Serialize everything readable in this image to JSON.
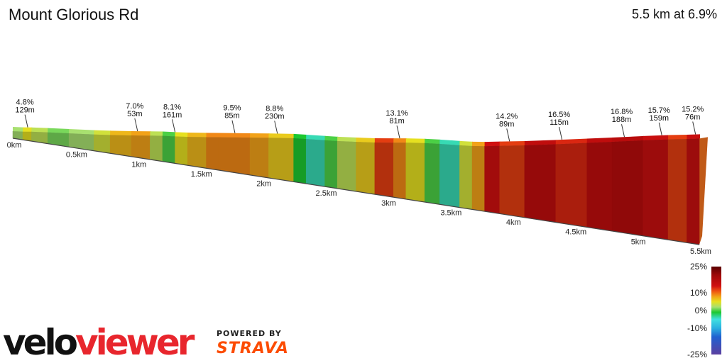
{
  "header": {
    "title": "Mount Glorious Rd",
    "summary": "5.5 km at 6.9%"
  },
  "branding": {
    "logo_text": "veloviewer",
    "powered_by": "POWERED BY",
    "strava": "STRAVA",
    "logo_color": "#e8262d",
    "strava_color": "#fc4c02"
  },
  "chart_data": {
    "type": "area",
    "title": "",
    "xlabel": "",
    "ylabel": "",
    "x_unit": "km",
    "xlim": [
      0,
      5.5
    ],
    "distance_ticks": [
      "0km",
      "0.5km",
      "1km",
      "1.5km",
      "2km",
      "2.5km",
      "3km",
      "3.5km",
      "4km",
      "4.5km",
      "5km",
      "5.5km"
    ],
    "profile": [
      {
        "d": 0.0,
        "e": 0.0,
        "g": -6
      },
      {
        "d": 0.08,
        "e": 2,
        "g": 2
      },
      {
        "d": 0.15,
        "e": 7,
        "g": 5
      },
      {
        "d": 0.28,
        "e": 11,
        "g": 3
      },
      {
        "d": 0.45,
        "e": 14,
        "g": 1
      },
      {
        "d": 0.65,
        "e": 17,
        "g": 2
      },
      {
        "d": 0.78,
        "e": 22,
        "g": 4
      },
      {
        "d": 0.95,
        "e": 32,
        "g": 7
      },
      {
        "d": 1.1,
        "e": 44,
        "g": 8
      },
      {
        "d": 1.2,
        "e": 50,
        "g": 3
      },
      {
        "d": 1.3,
        "e": 52,
        "g": 0
      },
      {
        "d": 1.4,
        "e": 55,
        "g": 5
      },
      {
        "d": 1.55,
        "e": 65,
        "g": 7
      },
      {
        "d": 1.65,
        "e": 73,
        "g": 9
      },
      {
        "d": 1.9,
        "e": 92,
        "g": 9
      },
      {
        "d": 2.05,
        "e": 103,
        "g": 8
      },
      {
        "d": 2.25,
        "e": 116,
        "g": 6
      },
      {
        "d": 2.35,
        "e": 114,
        "g": -1
      },
      {
        "d": 2.5,
        "e": 112,
        "g": -4
      },
      {
        "d": 2.6,
        "e": 111,
        "g": 0
      },
      {
        "d": 2.75,
        "e": 114,
        "g": 3
      },
      {
        "d": 2.9,
        "e": 119,
        "g": 6
      },
      {
        "d": 3.05,
        "e": 132,
        "g": 12
      },
      {
        "d": 3.15,
        "e": 141,
        "g": 9
      },
      {
        "d": 3.3,
        "e": 149,
        "g": 5
      },
      {
        "d": 3.42,
        "e": 150,
        "g": 0
      },
      {
        "d": 3.58,
        "e": 146,
        "g": -4
      },
      {
        "d": 3.68,
        "e": 146,
        "g": 4
      },
      {
        "d": 3.78,
        "e": 153,
        "g": 8
      },
      {
        "d": 3.9,
        "e": 168,
        "g": 14
      },
      {
        "d": 4.1,
        "e": 192,
        "g": 12
      },
      {
        "d": 4.35,
        "e": 230,
        "g": 16
      },
      {
        "d": 4.6,
        "e": 270,
        "g": 13
      },
      {
        "d": 4.8,
        "e": 302,
        "g": 16
      },
      {
        "d": 5.05,
        "e": 344,
        "g": 17
      },
      {
        "d": 5.25,
        "e": 375,
        "g": 15
      },
      {
        "d": 5.4,
        "e": 394,
        "g": 12
      },
      {
        "d": 5.5,
        "e": 409,
        "g": 15
      }
    ],
    "annotations": [
      {
        "d": 0.12,
        "grade": "4.8%",
        "length": "129m"
      },
      {
        "d": 1.0,
        "grade": "7.0%",
        "length": "53m"
      },
      {
        "d": 1.3,
        "grade": "8.1%",
        "length": "161m"
      },
      {
        "d": 1.78,
        "grade": "9.5%",
        "length": "85m"
      },
      {
        "d": 2.12,
        "grade": "8.8%",
        "length": "230m"
      },
      {
        "d": 3.1,
        "grade": "13.1%",
        "length": "81m"
      },
      {
        "d": 3.98,
        "grade": "14.2%",
        "length": "89m"
      },
      {
        "d": 4.4,
        "grade": "16.5%",
        "length": "115m"
      },
      {
        "d": 4.9,
        "grade": "16.8%",
        "length": "188m"
      },
      {
        "d": 5.2,
        "grade": "15.7%",
        "length": "159m"
      },
      {
        "d": 5.47,
        "grade": "15.2%",
        "length": "76m"
      }
    ],
    "legend": {
      "placement": "bottom-right",
      "labels": [
        "25%",
        "10%",
        "0%",
        "-10%",
        "-25%"
      ],
      "values": [
        25,
        10,
        0,
        -10,
        -25
      ]
    },
    "grade_colors": [
      {
        "v": -25,
        "c": "#5b3fa0"
      },
      {
        "v": -15,
        "c": "#2060d0"
      },
      {
        "v": -10,
        "c": "#2ab0e0"
      },
      {
        "v": -5,
        "c": "#40e0e0"
      },
      {
        "v": -1,
        "c": "#1cc830"
      },
      {
        "v": 2,
        "c": "#a8e070"
      },
      {
        "v": 5,
        "c": "#e6e020"
      },
      {
        "v": 8,
        "c": "#f2a218"
      },
      {
        "v": 11,
        "c": "#ee5412"
      },
      {
        "v": 14,
        "c": "#d01010"
      },
      {
        "v": 20,
        "c": "#a00808"
      },
      {
        "v": 25,
        "c": "#5a0000"
      }
    ]
  }
}
